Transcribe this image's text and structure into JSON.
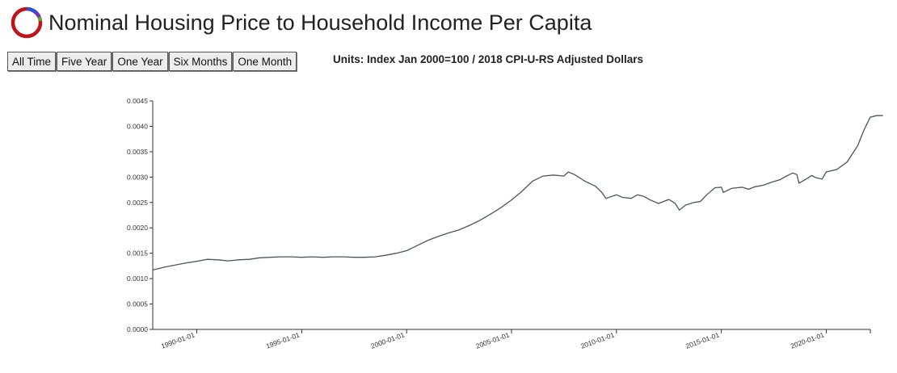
{
  "header": {
    "title": "Nominal Housing Price to Household Income Per Capita",
    "logo_icon": "ring-logo-icon"
  },
  "range_buttons": [
    {
      "label": "All Time"
    },
    {
      "label": "Five Year"
    },
    {
      "label": "One Year"
    },
    {
      "label": "Six Months"
    },
    {
      "label": "One Month"
    }
  ],
  "units_label": "Units: Index Jan 2000=100 / 2018 CPI-U-RS Adjusted Dollars",
  "colors": {
    "line": "#4a5560",
    "axis": "#333333",
    "logo_ring": "#c0141b",
    "logo_blue": "#2f4fd8",
    "logo_purple": "#7b2fbf",
    "logo_green": "#5aa83c"
  },
  "chart_data": {
    "type": "line",
    "title": "Nominal Housing Price to Household Income Per Capita",
    "xlabel": "",
    "ylabel": "",
    "xlim": [
      1987.9,
      2022.1
    ],
    "ylim": [
      0,
      0.0045
    ],
    "y_ticks": [
      "0.0000",
      "0.0005",
      "0.0010",
      "0.0015",
      "0.0020",
      "0.0025",
      "0.0030",
      "0.0035",
      "0.0040",
      "0.0045"
    ],
    "x_ticks": [
      {
        "year": 1990,
        "label": "1990-01-01"
      },
      {
        "year": 1995,
        "label": "1995-01-01"
      },
      {
        "year": 2000,
        "label": "2000-01-01"
      },
      {
        "year": 2005,
        "label": "2005-01-01"
      },
      {
        "year": 2010,
        "label": "2010-01-01"
      },
      {
        "year": 2015,
        "label": "2015-01-01"
      },
      {
        "year": 2020,
        "label": "2020-01-01"
      }
    ],
    "series": [
      {
        "name": "Nominal Housing Price to Household Income Per Capita",
        "points": [
          [
            1987.9,
            0.00117
          ],
          [
            1988.5,
            0.00123
          ],
          [
            1989.0,
            0.00127
          ],
          [
            1989.5,
            0.00131
          ],
          [
            1990.0,
            0.00134
          ],
          [
            1990.5,
            0.00138
          ],
          [
            1991.0,
            0.00137
          ],
          [
            1991.5,
            0.00135
          ],
          [
            1992.0,
            0.00137
          ],
          [
            1992.5,
            0.00138
          ],
          [
            1993.0,
            0.00141
          ],
          [
            1993.5,
            0.00142
          ],
          [
            1994.0,
            0.00143
          ],
          [
            1994.5,
            0.00143
          ],
          [
            1995.0,
            0.00142
          ],
          [
            1995.5,
            0.00143
          ],
          [
            1996.0,
            0.00142
          ],
          [
            1996.5,
            0.00143
          ],
          [
            1997.0,
            0.00143
          ],
          [
            1997.5,
            0.00142
          ],
          [
            1998.0,
            0.00142
          ],
          [
            1998.5,
            0.00143
          ],
          [
            1999.0,
            0.00146
          ],
          [
            1999.5,
            0.0015
          ],
          [
            2000.0,
            0.00155
          ],
          [
            2000.5,
            0.00165
          ],
          [
            2001.0,
            0.00175
          ],
          [
            2001.5,
            0.00183
          ],
          [
            2002.0,
            0.0019
          ],
          [
            2002.5,
            0.00196
          ],
          [
            2003.0,
            0.00205
          ],
          [
            2003.5,
            0.00215
          ],
          [
            2004.0,
            0.00227
          ],
          [
            2004.5,
            0.0024
          ],
          [
            2005.0,
            0.00255
          ],
          [
            2005.5,
            0.00272
          ],
          [
            2006.0,
            0.00292
          ],
          [
            2006.5,
            0.00302
          ],
          [
            2007.0,
            0.00304
          ],
          [
            2007.5,
            0.00302
          ],
          [
            2007.7,
            0.0031
          ],
          [
            2008.0,
            0.00305
          ],
          [
            2008.5,
            0.00292
          ],
          [
            2009.0,
            0.00282
          ],
          [
            2009.3,
            0.0027
          ],
          [
            2009.5,
            0.00258
          ],
          [
            2010.0,
            0.00265
          ],
          [
            2010.3,
            0.0026
          ],
          [
            2010.7,
            0.00258
          ],
          [
            2011.0,
            0.00265
          ],
          [
            2011.3,
            0.00262
          ],
          [
            2011.6,
            0.00255
          ],
          [
            2012.0,
            0.00248
          ],
          [
            2012.5,
            0.00256
          ],
          [
            2012.8,
            0.00248
          ],
          [
            2013.0,
            0.00235
          ],
          [
            2013.3,
            0.00245
          ],
          [
            2013.7,
            0.0025
          ],
          [
            2014.0,
            0.00252
          ],
          [
            2014.3,
            0.00265
          ],
          [
            2014.7,
            0.00279
          ],
          [
            2015.0,
            0.0028
          ],
          [
            2015.1,
            0.0027
          ],
          [
            2015.5,
            0.00278
          ],
          [
            2016.0,
            0.0028
          ],
          [
            2016.3,
            0.00276
          ],
          [
            2016.6,
            0.00281
          ],
          [
            2017.0,
            0.00284
          ],
          [
            2017.4,
            0.0029
          ],
          [
            2017.8,
            0.00295
          ],
          [
            2018.1,
            0.00302
          ],
          [
            2018.4,
            0.00308
          ],
          [
            2018.6,
            0.00305
          ],
          [
            2018.7,
            0.00288
          ],
          [
            2019.0,
            0.00295
          ],
          [
            2019.3,
            0.00303
          ],
          [
            2019.5,
            0.00299
          ],
          [
            2019.8,
            0.00296
          ],
          [
            2020.0,
            0.0031
          ],
          [
            2020.5,
            0.00315
          ],
          [
            2021.0,
            0.0033
          ],
          [
            2021.5,
            0.00362
          ],
          [
            2021.8,
            0.00393
          ],
          [
            2022.1,
            0.00418
          ],
          [
            2022.4,
            0.00421
          ],
          [
            2022.7,
            0.00421
          ]
        ]
      }
    ]
  }
}
